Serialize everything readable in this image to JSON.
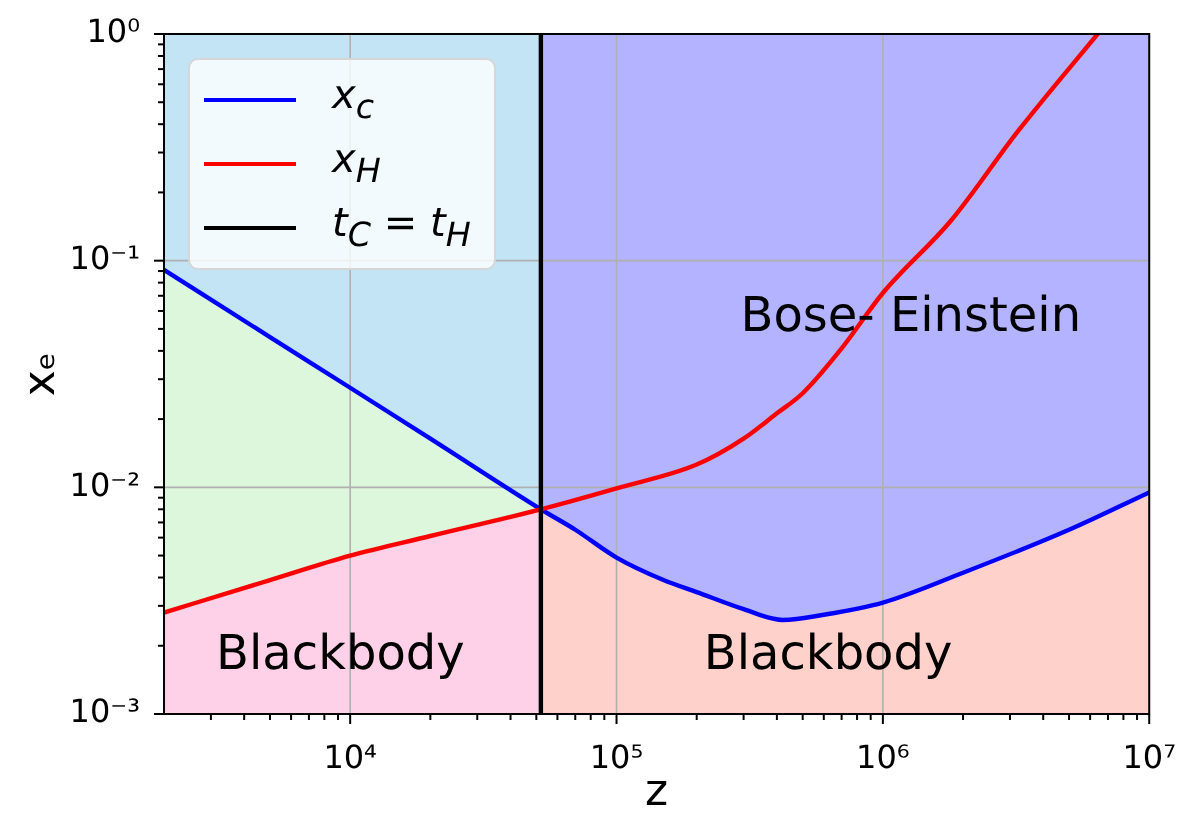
{
  "chart_data": {
    "type": "line",
    "xlabel": "z",
    "ylabel": "xₑ",
    "log": "xy",
    "grid": true,
    "legend": "top left",
    "xlim": [
      2000,
      10000000
    ],
    "ylim": [
      0.001,
      1
    ],
    "xticks": [
      {
        "value": 3000,
        "label": null
      },
      {
        "value": 4000,
        "label": null
      },
      {
        "value": 5000,
        "label": null
      },
      {
        "value": 6000,
        "label": null
      },
      {
        "value": 7000,
        "label": null
      },
      {
        "value": 8000,
        "label": null
      },
      {
        "value": 9000,
        "label": null
      },
      {
        "value": 10000,
        "label": "10⁴"
      },
      {
        "value": 20000,
        "label": null
      },
      {
        "value": 30000,
        "label": null
      },
      {
        "value": 40000,
        "label": null
      },
      {
        "value": 50000,
        "label": null
      },
      {
        "value": 60000,
        "label": null
      },
      {
        "value": 70000,
        "label": null
      },
      {
        "value": 80000,
        "label": null
      },
      {
        "value": 90000,
        "label": null
      },
      {
        "value": 100000,
        "label": "10⁵"
      },
      {
        "value": 200000,
        "label": null
      },
      {
        "value": 300000,
        "label": null
      },
      {
        "value": 400000,
        "label": null
      },
      {
        "value": 500000,
        "label": null
      },
      {
        "value": 600000,
        "label": null
      },
      {
        "value": 700000,
        "label": null
      },
      {
        "value": 800000,
        "label": null
      },
      {
        "value": 900000,
        "label": null
      },
      {
        "value": 1000000,
        "label": "10⁶"
      },
      {
        "value": 2000000,
        "label": null
      },
      {
        "value": 3000000,
        "label": null
      },
      {
        "value": 4000000,
        "label": null
      },
      {
        "value": 5000000,
        "label": null
      },
      {
        "value": 6000000,
        "label": null
      },
      {
        "value": 7000000,
        "label": null
      },
      {
        "value": 8000000,
        "label": null
      },
      {
        "value": 9000000,
        "label": null
      },
      {
        "value": 10000000,
        "label": "10⁷"
      }
    ],
    "yticks": [
      {
        "value": 0.001,
        "label": "10⁻³"
      },
      {
        "value": 0.002,
        "label": null
      },
      {
        "value": 0.003,
        "label": null
      },
      {
        "value": 0.004,
        "label": null
      },
      {
        "value": 0.005,
        "label": null
      },
      {
        "value": 0.006,
        "label": null
      },
      {
        "value": 0.007,
        "label": null
      },
      {
        "value": 0.008,
        "label": null
      },
      {
        "value": 0.009,
        "label": null
      },
      {
        "value": 0.01,
        "label": "10⁻²"
      },
      {
        "value": 0.02,
        "label": null
      },
      {
        "value": 0.03,
        "label": null
      },
      {
        "value": 0.04,
        "label": null
      },
      {
        "value": 0.05,
        "label": null
      },
      {
        "value": 0.06,
        "label": null
      },
      {
        "value": 0.07,
        "label": null
      },
      {
        "value": 0.08,
        "label": null
      },
      {
        "value": 0.09,
        "label": null
      },
      {
        "value": 0.1,
        "label": "10⁻¹"
      },
      {
        "value": 0.2,
        "label": null
      },
      {
        "value": 0.3,
        "label": null
      },
      {
        "value": 0.4,
        "label": null
      },
      {
        "value": 0.5,
        "label": null
      },
      {
        "value": 0.6,
        "label": null
      },
      {
        "value": 0.7,
        "label": null
      },
      {
        "value": 0.8,
        "label": null
      },
      {
        "value": 0.9,
        "label": null
      },
      {
        "value": 1,
        "label": "10⁰"
      }
    ],
    "series": [
      {
        "name": "x$_{c}$",
        "color": "#0000ff",
        "x": [
          2000,
          5000,
          10000,
          20000,
          52000,
          70000,
          100000,
          150000,
          200000,
          300000,
          420000,
          600000,
          1000000,
          2000000,
          5000000,
          10000000
        ],
        "values": [
          0.091,
          0.046,
          0.0275,
          0.0164,
          0.008,
          0.0065,
          0.0049,
          0.0039,
          0.00345,
          0.0029,
          0.0026,
          0.00274,
          0.0031,
          0.0042,
          0.0065,
          0.0095
        ]
      },
      {
        "name": "x$_{H}$",
        "color": "#ff0000",
        "x": [
          2000,
          5000,
          10000,
          20000,
          52000,
          100000,
          200000,
          300000,
          400000,
          500000,
          700000,
          1000000,
          1800000,
          3200000,
          6400000
        ],
        "values": [
          0.0028,
          0.0039,
          0.005,
          0.0061,
          0.008,
          0.0099,
          0.0126,
          0.0164,
          0.0212,
          0.026,
          0.041,
          0.072,
          0.15,
          0.37,
          1
        ]
      },
      {
        "name": "t$_{C}$ = t$_{H}$",
        "color": "#000000",
        "x": [
          52000,
          52000
        ],
        "values": [
          0.001,
          1
        ]
      },
      {
        "type": "area",
        "color": "#dcf7dc",
        "x": [
          2000,
          5000,
          10000,
          20000,
          52000
        ],
        "values": [
          0.091,
          0.046,
          0.0275,
          0.0164,
          0.008
        ]
      },
      {
        "type": "area",
        "color": "#ffd1e8",
        "x": [
          2000,
          5000,
          10000,
          20000,
          52000
        ],
        "values": [
          0.0028,
          0.0039,
          0.005,
          0.0061,
          0.008
        ]
      },
      {
        "type": "area",
        "color": "#ffd1ca",
        "x": [
          52000,
          70000,
          100000,
          150000,
          200000,
          300000,
          420000,
          600000,
          1000000,
          2000000,
          5000000,
          10000000
        ],
        "values": [
          0.008,
          0.0065,
          0.0049,
          0.0039,
          0.00345,
          0.0029,
          0.0026,
          0.00274,
          0.0031,
          0.0042,
          0.0065,
          0.0095
        ]
      }
    ],
    "bands": [
      {
        "axis": "x",
        "from": 2000,
        "to": 52000,
        "color": "#c2e4f4"
      },
      {
        "axis": "x",
        "from": 52000,
        "to": 10000000,
        "color": "#b3b3ff"
      }
    ],
    "annotations": [
      "Blackbody",
      "Bose- Einstein",
      "Blackbody"
    ]
  }
}
